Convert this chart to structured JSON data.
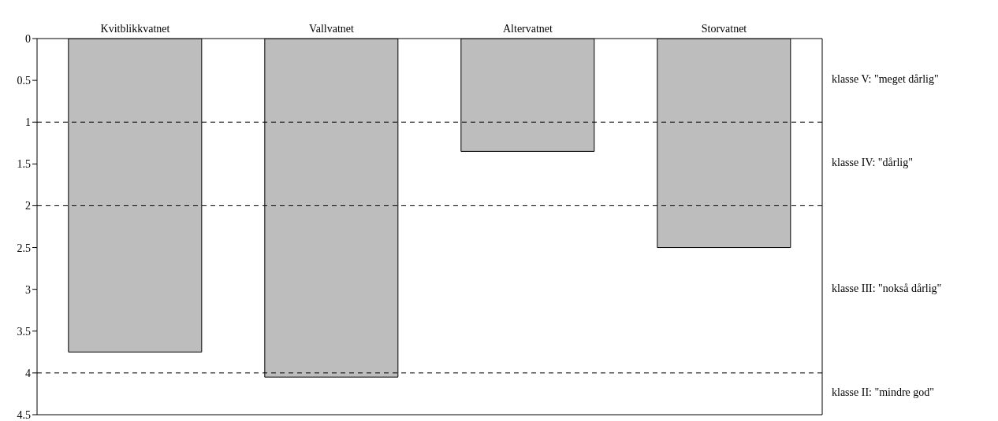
{
  "chart_data": {
    "type": "bar",
    "categories": [
      "Kvitblikkvatnet",
      "Vallvatnet",
      "Altervatnet",
      "Storvatnet"
    ],
    "values": [
      3.75,
      4.05,
      1.35,
      2.5
    ],
    "color": "#bdbdbd",
    "ylim": [
      4.5,
      0
    ],
    "yticks": [
      0,
      0.5,
      1,
      1.5,
      2,
      2.5,
      3,
      3.5,
      4,
      4.5
    ],
    "ref_lines": [
      {
        "axis": "y",
        "value": 1,
        "line_style": "dashed"
      },
      {
        "axis": "y",
        "value": 2,
        "line_style": "dashed"
      },
      {
        "axis": "y",
        "value": 4,
        "line_style": "dashed"
      }
    ],
    "annotations": [
      "klasse V: \"meget dårlig\"",
      "klasse IV: \"dårlig\"",
      "klasse III: \"nokså dårlig\"",
      "klasse II: \"mindre god\""
    ],
    "grid": false,
    "legend": false
  }
}
